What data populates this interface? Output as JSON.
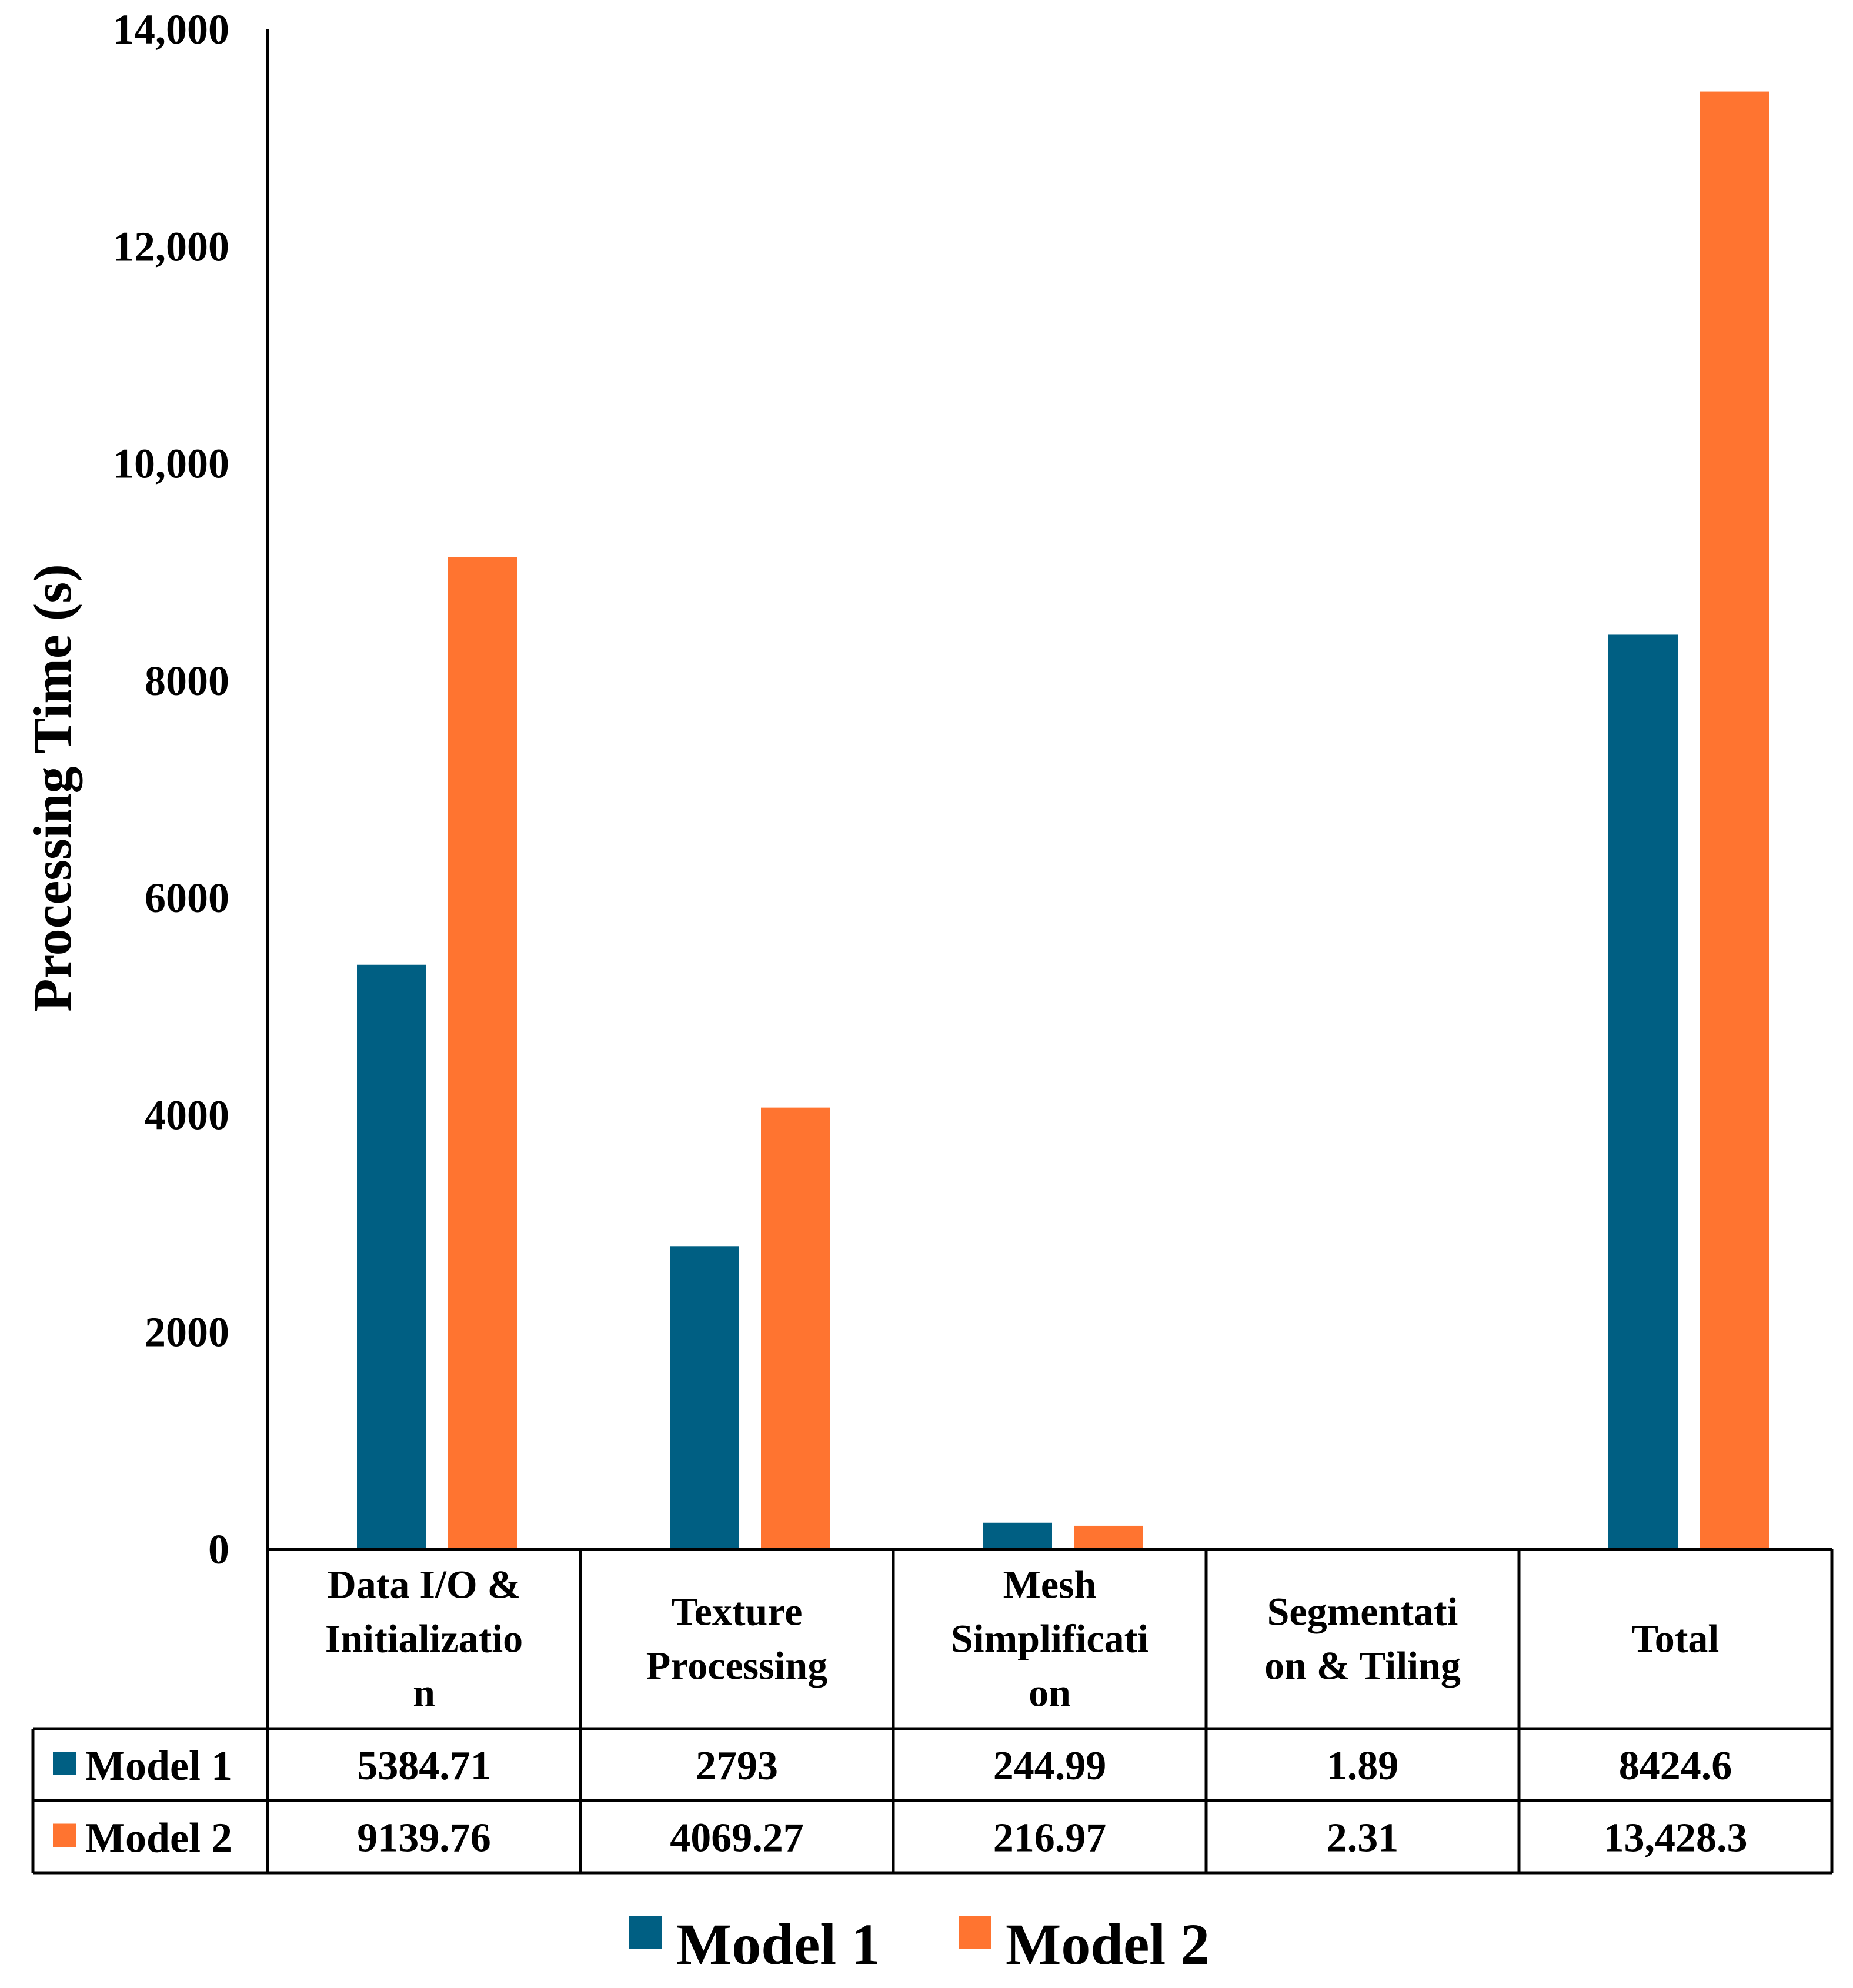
{
  "chart_data": {
    "type": "bar",
    "ylabel": "Processing Time (s)",
    "ylim": [
      0,
      14000
    ],
    "yticks": [
      "0",
      "2000",
      "4000",
      "6000",
      "8000",
      "10,000",
      "12,000",
      "14,000"
    ],
    "categories": [
      [
        "Data I/O &",
        "Initializatio",
        "n"
      ],
      [
        "Texture",
        "Processing"
      ],
      [
        "Mesh",
        "Simplificati",
        "on"
      ],
      [
        "Segmentati",
        "on & Tiling"
      ],
      [
        "Total"
      ]
    ],
    "series": [
      {
        "name": "Model 1",
        "color": "#005F83",
        "values": [
          5384.71,
          2793,
          244.99,
          1.89,
          8424.6
        ],
        "labels": [
          "5384.71",
          "2793",
          "244.99",
          "1.89",
          "8424.6"
        ]
      },
      {
        "name": "Model 2",
        "color": "#FF7430",
        "values": [
          9139.76,
          4069.27,
          216.97,
          2.31,
          13428.3
        ],
        "labels": [
          "9139.76",
          "4069.27",
          "216.97",
          "2.31",
          "13,428.3"
        ]
      }
    ],
    "legend": "bottom"
  }
}
